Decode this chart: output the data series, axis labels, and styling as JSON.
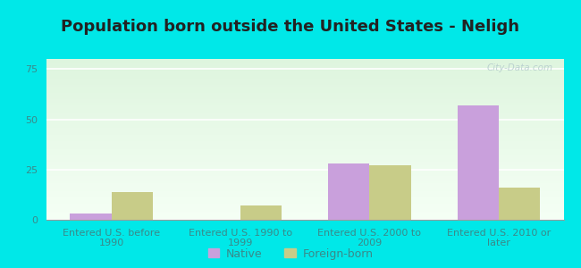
{
  "title": "Population born outside the United States - Neligh",
  "categories": [
    "Entered U.S. before\n1990",
    "Entered U.S. 1990 to\n1999",
    "Entered U.S. 2000 to\n2009",
    "Entered U.S. 2010 or\nlater"
  ],
  "native_values": [
    3,
    0,
    28,
    57
  ],
  "foreign_values": [
    14,
    7,
    27,
    16
  ],
  "native_color": "#c9a0dc",
  "foreign_color": "#c8cc88",
  "ylim": [
    0,
    80
  ],
  "yticks": [
    0,
    25,
    50,
    75
  ],
  "background_outer": "#00e8e8",
  "background_inner_top": "#ddf0dc",
  "background_inner_bottom": "#f5fff5",
  "watermark": "City-Data.com",
  "bar_width": 0.32,
  "title_fontsize": 13,
  "tick_label_fontsize": 8,
  "legend_fontsize": 9,
  "axis_label_color": "#3a8a8a",
  "title_color": "#222222"
}
